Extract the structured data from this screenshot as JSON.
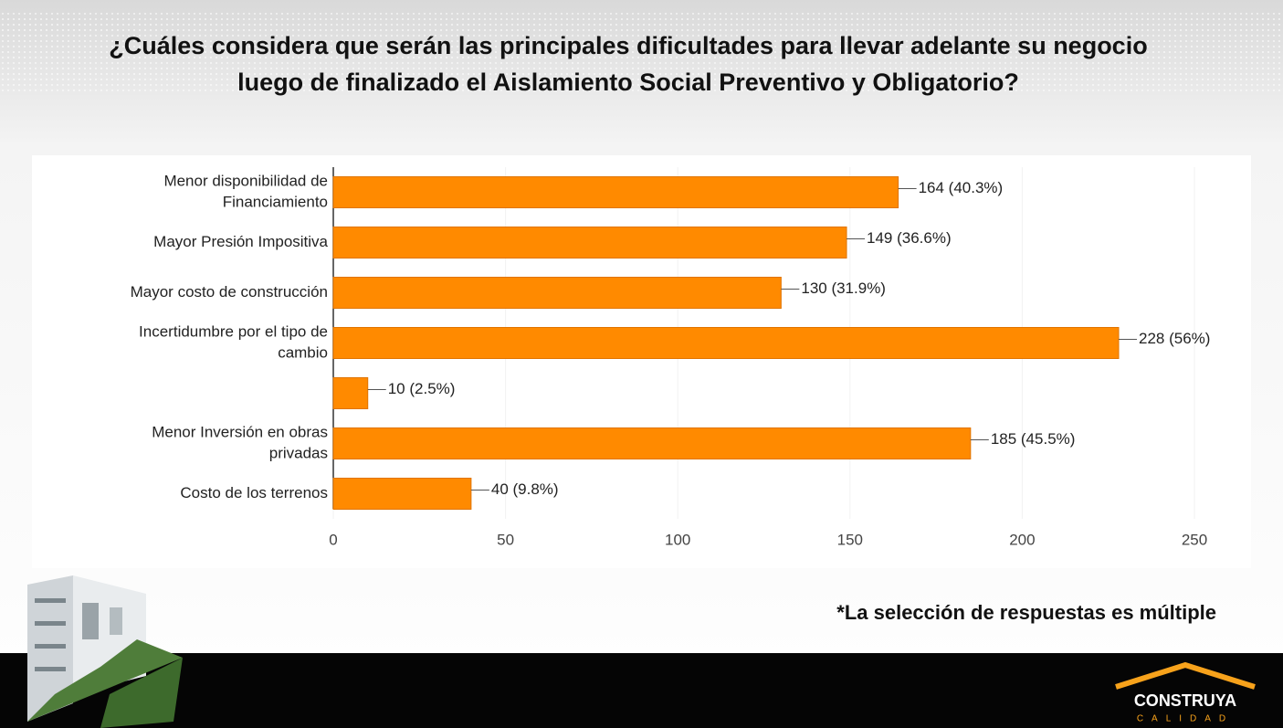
{
  "chart_data": {
    "type": "bar",
    "orientation": "horizontal",
    "title": [
      "¿Cuáles considera que serán las principales dificultades para llevar adelante su negocio",
      "luego de finalizado el Aislamiento Social Preventivo y Obligatorio?"
    ],
    "categories": [
      [
        "Menor disponibilidad de",
        "Financiamiento"
      ],
      "Mayor Presión Impositiva",
      "Mayor costo de construcción",
      [
        "Incertidumbre por el tipo de",
        "cambio"
      ],
      null,
      [
        "Menor Inversión en obras",
        "privadas"
      ],
      "Costo de los terrenos"
    ],
    "values": [
      164,
      149,
      130,
      228,
      10,
      185,
      40
    ],
    "value_labels": [
      "164 (40.3%)",
      "149 (36.6%)",
      "130 (31.9%)",
      "228 (56%)",
      "10 (2.5%)",
      "185 (45.5%)",
      "40 (9.8%)"
    ],
    "color": "#ff8a00",
    "xlim": [
      0,
      250
    ],
    "xticks": [
      0,
      50,
      100,
      150,
      200,
      250
    ],
    "annotation": "*La selección de respuestas es múltiple"
  },
  "logo": {
    "name": "CONSTRUYA",
    "tagline": "CALIDAD"
  }
}
